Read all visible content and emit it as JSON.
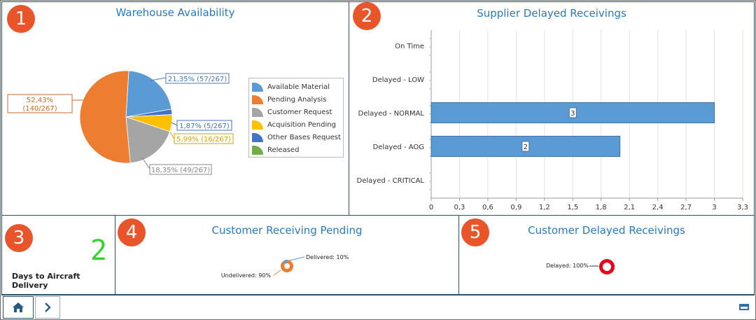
{
  "panels": [
    {
      "badge": "1",
      "title": "Warehouse Availability"
    },
    {
      "badge": "2",
      "title": "Supplier Delayed Receivings"
    },
    {
      "badge": "3",
      "value": "2",
      "label": "Days to Aircraft Delivery"
    },
    {
      "badge": "4",
      "title": "Customer Receiving Pending"
    },
    {
      "badge": "5",
      "title": "Customer Delayed Receivings"
    }
  ],
  "chart_data": [
    {
      "type": "pie",
      "title": "Warehouse Availability",
      "categories": [
        "Available Material",
        "Pending Analysis",
        "Customer Request",
        "Acquisition Pending",
        "Other Bases Request",
        "Released"
      ],
      "values": [
        57,
        140,
        49,
        16,
        5,
        0
      ],
      "total": 267,
      "colors": [
        "#5b9bd5",
        "#ed7d31",
        "#a5a5a5",
        "#ffc000",
        "#4472c4",
        "#70ad47"
      ],
      "labels": [
        "21,35% (57/267)",
        "52,43%",
        "(140/267)",
        "18,35% (49/267)",
        "5,99% (16/267)",
        "1,87% (5/267)"
      ],
      "legend": "right"
    },
    {
      "type": "bar",
      "orientation": "horizontal",
      "title": "Supplier Delayed Receivings",
      "categories": [
        "On Time",
        "Delayed - LOW",
        "Delayed - NORMAL",
        "Delayed - AOG",
        "Delayed - CRITICAL"
      ],
      "values": [
        0,
        0,
        3,
        2,
        0
      ],
      "value_labels": [
        "",
        "",
        "3",
        "2",
        ""
      ],
      "xlim": [
        0,
        3.3
      ],
      "ticks": [
        "0",
        "0,3",
        "0,6",
        "0,9",
        "1,2",
        "1,5",
        "1,8",
        "2,1",
        "2,4",
        "2,7",
        "3",
        "3,3"
      ],
      "color": "#5b9bd5",
      "grid": true
    },
    {
      "type": "pie",
      "style": "donut",
      "title": "Customer Receiving Pending",
      "categories": [
        "Undelivered",
        "Delivered"
      ],
      "values": [
        90,
        10
      ],
      "labels": [
        "Undelivered: 90%",
        "Delivered: 10%"
      ],
      "colors": [
        "#ed7d31",
        "#5b9bd5"
      ]
    },
    {
      "type": "pie",
      "style": "donut",
      "title": "Customer Delayed Receivings",
      "categories": [
        "Delayed"
      ],
      "values": [
        100
      ],
      "labels": [
        "Delayed: 100%"
      ],
      "colors": [
        "#e8001c"
      ]
    }
  ],
  "nav": {
    "home_icon": "home-icon",
    "next_icon": "chevron-right-icon",
    "tray_icon": "tray-icon"
  }
}
